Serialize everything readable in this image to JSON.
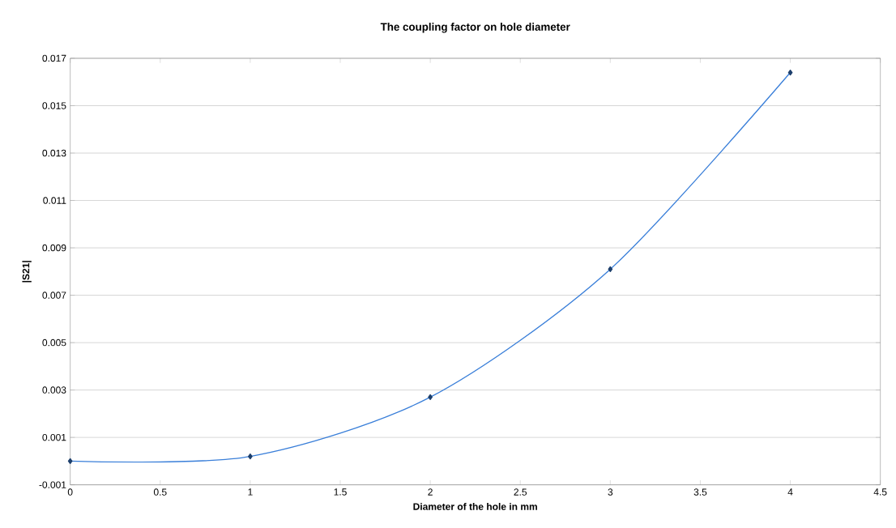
{
  "chart_data": {
    "type": "line",
    "title": "The coupling factor on hole diameter",
    "xlabel": "Diameter of the hole in mm",
    "ylabel": "|S21|",
    "x": [
      0,
      1,
      2,
      3,
      4
    ],
    "series": [
      {
        "color": "#3a7fd9",
        "values": [
          0.0,
          0.0002,
          0.0027,
          0.0081,
          0.0164
        ]
      }
    ],
    "xlim": [
      0,
      4.5
    ],
    "xticks": [
      0,
      0.5,
      1,
      1.5,
      2,
      2.5,
      3,
      3.5,
      4,
      4.5
    ],
    "ylim": [
      -0.001,
      0.017
    ],
    "yticks": [
      -0.001,
      0.001,
      0.003,
      0.005,
      0.007,
      0.009,
      0.011,
      0.013,
      0.015,
      0.017
    ],
    "grid": "y",
    "marker": "diamond",
    "line_style": "solid"
  }
}
